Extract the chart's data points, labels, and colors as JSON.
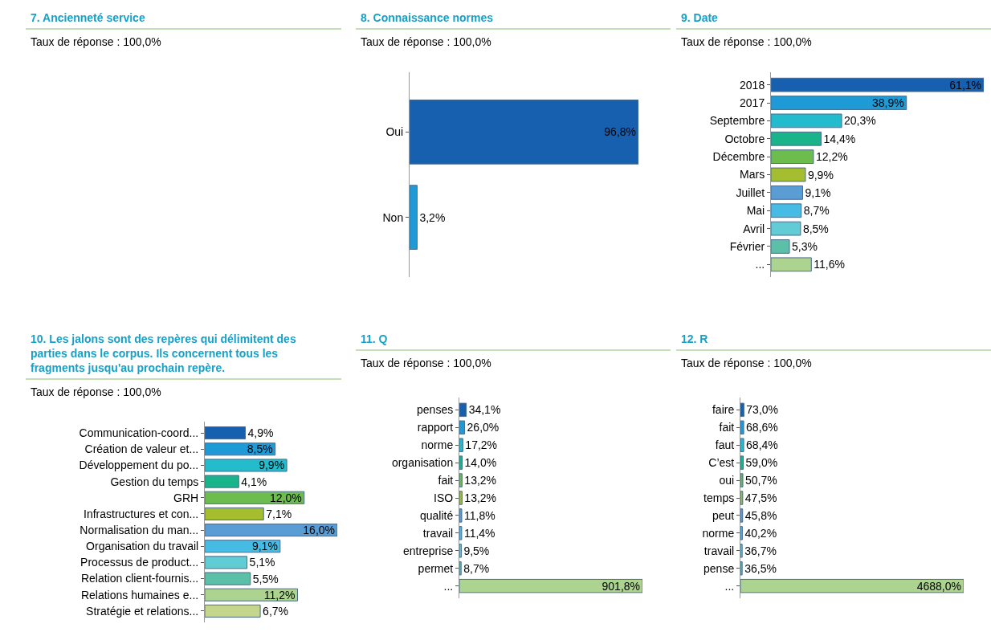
{
  "chart_data": [
    {
      "type": "other",
      "title": "7. Ancienneté service",
      "subtitle": "Taux de réponse : 100,0%"
    },
    {
      "type": "bar",
      "orientation": "horizontal",
      "title": "8. Connaissance normes",
      "subtitle": "Taux de réponse : 100,0%",
      "categories": [
        "Oui",
        "Non"
      ],
      "values": [
        96.8,
        3.2
      ],
      "colors": [
        "#1760b0",
        "#1e9ad6"
      ],
      "value_labels": [
        "96,8%",
        "3,2%"
      ]
    },
    {
      "type": "bar",
      "orientation": "horizontal",
      "title": "9. Date",
      "subtitle": "Taux de réponse : 100,0%",
      "categories": [
        "2018",
        "2017",
        "Septembre",
        "Octobre",
        "Décembre",
        "Mars",
        "Juillet",
        "Mai",
        "Avril",
        "Février",
        "..."
      ],
      "values": [
        61.1,
        38.9,
        20.3,
        14.4,
        12.2,
        9.9,
        9.1,
        8.7,
        8.5,
        5.3,
        11.6
      ],
      "colors": [
        "#1760b0",
        "#1e9ad6",
        "#22bccc",
        "#1ab48a",
        "#6cbc4e",
        "#a4be30",
        "#5a9cd4",
        "#46bce4",
        "#62ccd4",
        "#5cc0a8",
        "#acd490"
      ],
      "value_labels": [
        "61,1%",
        "38,9%",
        "20,3%",
        "14,4%",
        "12,2%",
        "9,9%",
        "9,1%",
        "8,7%",
        "8,5%",
        "5,3%",
        "11,6%"
      ]
    },
    {
      "type": "bar",
      "orientation": "horizontal",
      "title": "10. Les jalons sont des repères qui délimitent des parties dans le corpus. Ils concernent tous les fragments jusqu'au prochain repère.",
      "subtitle": "Taux de réponse : 100,0%",
      "categories": [
        "Communication-coord...",
        "Création de valeur et...",
        "Développement du po...",
        "Gestion du temps",
        "GRH",
        "Infrastructures et con...",
        "Normalisation du man...",
        "Organisation du travail",
        "Processus de product...",
        "Relation client-fournis...",
        "Relations humaines e...",
        "Stratégie et relations..."
      ],
      "values": [
        4.9,
        8.5,
        9.9,
        4.1,
        12.0,
        7.1,
        16.0,
        9.1,
        5.1,
        5.5,
        11.2,
        6.7
      ],
      "colors": [
        "#1760b0",
        "#1e9ad6",
        "#22bccc",
        "#1ab48a",
        "#6cbc4e",
        "#a4be30",
        "#5a9cd4",
        "#46bce4",
        "#62ccd4",
        "#5cc0a8",
        "#acd490",
        "#c4d68c"
      ],
      "value_labels": [
        "4,9%",
        "8,5%",
        "9,9%",
        "4,1%",
        "12,0%",
        "7,1%",
        "16,0%",
        "9,1%",
        "5,1%",
        "5,5%",
        "11,2%",
        "6,7%"
      ]
    },
    {
      "type": "bar",
      "orientation": "horizontal",
      "title": "11. Q",
      "subtitle": "Taux de réponse : 100,0%",
      "categories": [
        "penses",
        "rapport",
        "norme",
        "organisation",
        "fait",
        "ISO",
        "qualité",
        "travail",
        "entreprise",
        "permet",
        "..."
      ],
      "values": [
        34.1,
        26.0,
        17.2,
        14.0,
        13.2,
        13.2,
        11.8,
        11.4,
        9.5,
        8.7,
        901.8
      ],
      "colors": [
        "#1760b0",
        "#1e9ad6",
        "#22bccc",
        "#1ab48a",
        "#6cbc4e",
        "#a4be30",
        "#5a9cd4",
        "#46bce4",
        "#62ccd4",
        "#5cc0a8",
        "#acd490"
      ],
      "value_labels": [
        "34,1%",
        "26,0%",
        "17,2%",
        "14,0%",
        "13,2%",
        "13,2%",
        "11,8%",
        "11,4%",
        "9,5%",
        "8,7%",
        "901,8%"
      ]
    },
    {
      "type": "bar",
      "orientation": "horizontal",
      "title": "12. R",
      "subtitle": "Taux de réponse : 100,0%",
      "categories": [
        "faire",
        "fait",
        "faut",
        "C’est",
        "oui",
        "temps",
        "peut",
        "norme",
        "travail",
        "pense",
        "..."
      ],
      "values": [
        73.0,
        68.6,
        68.4,
        59.0,
        50.7,
        47.5,
        45.8,
        40.2,
        36.7,
        36.5,
        4688.0
      ],
      "colors": [
        "#1760b0",
        "#1e9ad6",
        "#22bccc",
        "#1ab48a",
        "#6cbc4e",
        "#a4be30",
        "#5a9cd4",
        "#46bce4",
        "#62ccd4",
        "#5cc0a8",
        "#acd490"
      ],
      "value_labels": [
        "73,0%",
        "68,6%",
        "68,4%",
        "59,0%",
        "50,7%",
        "47,5%",
        "45,8%",
        "40,2%",
        "36,7%",
        "36,5%",
        "4688,0%"
      ]
    }
  ]
}
